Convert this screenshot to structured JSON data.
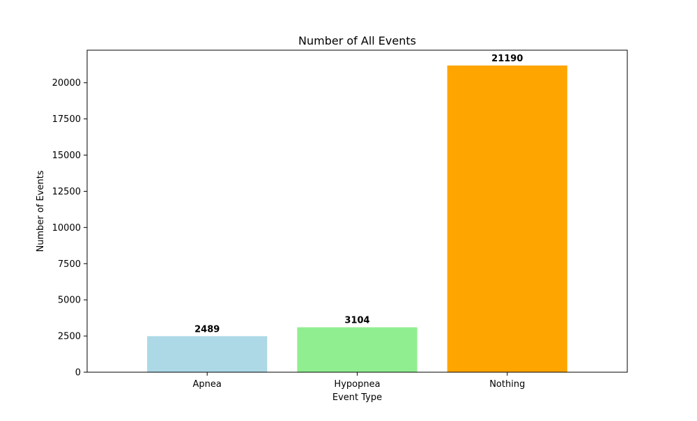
{
  "chart_data": {
    "type": "bar",
    "title": "Number of All Events",
    "xlabel": "Event Type",
    "ylabel": "Number of Events",
    "categories": [
      "Apnea",
      "Hypopnea",
      "Nothing"
    ],
    "values": [
      2489,
      3104,
      21190
    ],
    "colors": [
      "#add8e6",
      "#90ee90",
      "#ffa500"
    ],
    "data_labels": [
      "2489",
      "3104",
      "21190"
    ],
    "yticks": [
      0,
      2500,
      5000,
      7500,
      10000,
      12500,
      15000,
      17500,
      20000
    ],
    "ylim": [
      0,
      22249.5
    ],
    "grid": false,
    "legend": "none"
  }
}
